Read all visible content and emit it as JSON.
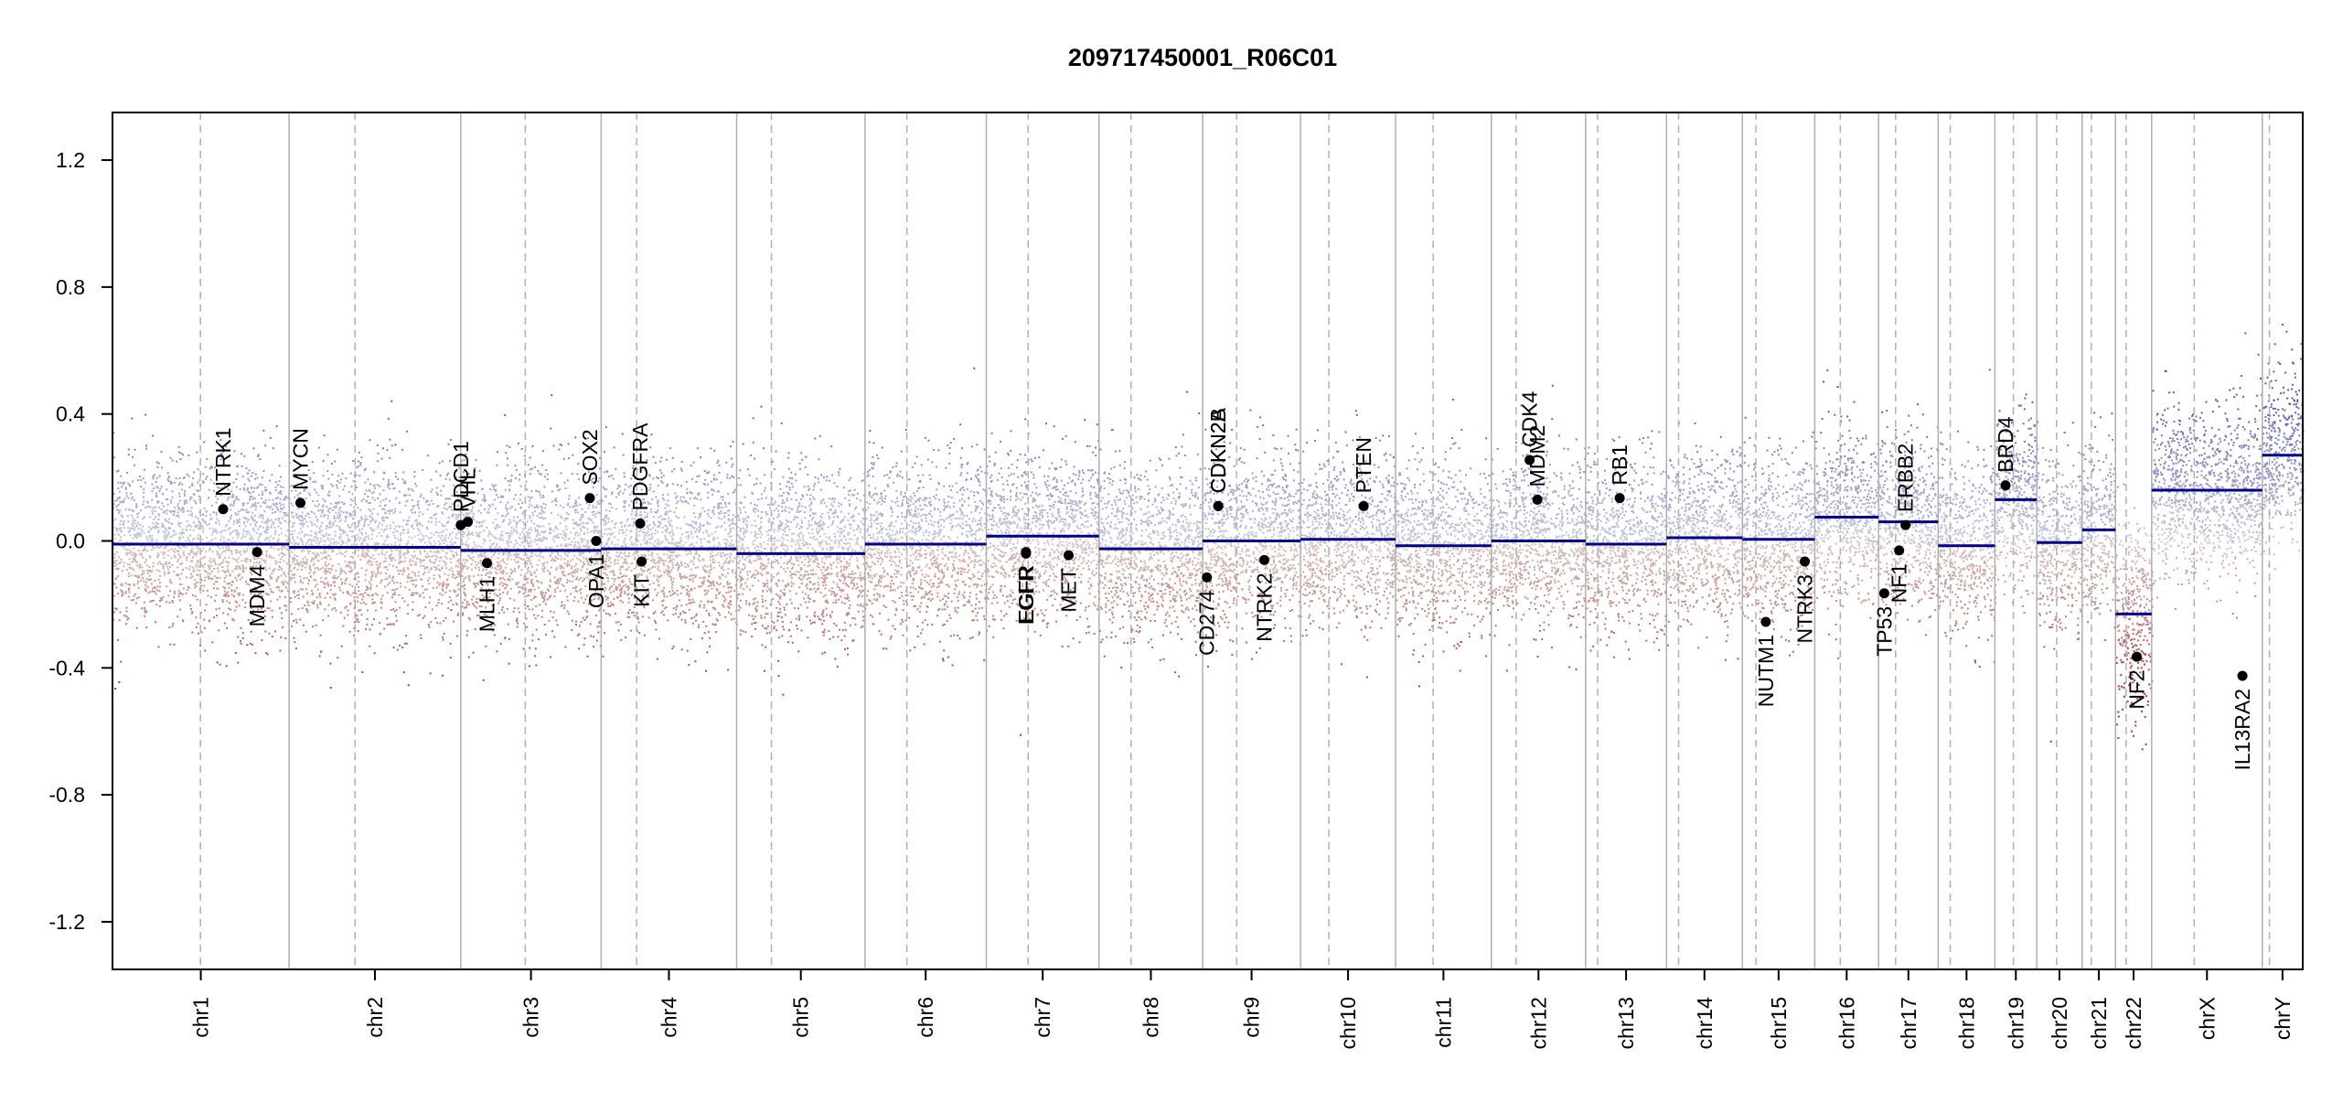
{
  "chart_data": {
    "type": "scatter",
    "title": "209717450001_R06C01",
    "xlabel": "",
    "ylabel": "",
    "ylim": [
      -1.35,
      1.35
    ],
    "y_ticks": [
      "1.2",
      "0.8",
      "0.4",
      "0.0",
      "-0.4",
      "-0.8",
      "-1.2"
    ],
    "y_tick_values": [
      1.2,
      0.8,
      0.4,
      0.0,
      -0.4,
      -0.8,
      -1.2
    ],
    "grid": false,
    "colors": {
      "gain": "#3f3fa0",
      "loss": "#a02020",
      "segment": "#00008b",
      "gene": "#000000",
      "boundary": "#b0b0b0",
      "centromere": "#b0b0b0"
    },
    "chromosomes": [
      {
        "name": "chr1",
        "start": 0,
        "end": 249,
        "centromere": 124,
        "segment": -0.01
      },
      {
        "name": "chr2",
        "start": 249,
        "end": 491,
        "centromere": 342,
        "segment": -0.02
      },
      {
        "name": "chr3",
        "start": 491,
        "end": 689,
        "centromere": 582,
        "segment": -0.03
      },
      {
        "name": "chr4",
        "start": 689,
        "end": 880,
        "centromere": 739,
        "segment": -0.025
      },
      {
        "name": "chr5",
        "start": 880,
        "end": 1061,
        "centromere": 929,
        "segment": -0.04
      },
      {
        "name": "chr6",
        "start": 1061,
        "end": 1232,
        "centromere": 1120,
        "segment": -0.01
      },
      {
        "name": "chr7",
        "start": 1232,
        "end": 1391,
        "centromere": 1291,
        "segment": 0.015
      },
      {
        "name": "chr8",
        "start": 1391,
        "end": 1537,
        "centromere": 1436,
        "segment": -0.025
      },
      {
        "name": "chr9",
        "start": 1537,
        "end": 1675,
        "centromere": 1585,
        "segment": 0.0
      },
      {
        "name": "chr10",
        "start": 1675,
        "end": 1809,
        "centromere": 1715,
        "segment": 0.005
      },
      {
        "name": "chr11",
        "start": 1809,
        "end": 1944,
        "centromere": 1862,
        "segment": -0.015
      },
      {
        "name": "chr12",
        "start": 1944,
        "end": 2077,
        "centromere": 1979,
        "segment": 0.0
      },
      {
        "name": "chr13",
        "start": 2077,
        "end": 2191,
        "centromere": 2094,
        "segment": -0.01
      },
      {
        "name": "chr14",
        "start": 2191,
        "end": 2298,
        "centromere": 2208,
        "segment": 0.01
      },
      {
        "name": "chr15",
        "start": 2298,
        "end": 2400,
        "centromere": 2317,
        "segment": 0.005
      },
      {
        "name": "chr16",
        "start": 2400,
        "end": 2490,
        "centromere": 2436,
        "segment": 0.075
      },
      {
        "name": "chr17",
        "start": 2490,
        "end": 2574,
        "centromere": 2514,
        "segment": 0.06
      },
      {
        "name": "chr18",
        "start": 2574,
        "end": 2654,
        "centromere": 2591,
        "segment": -0.015
      },
      {
        "name": "chr19",
        "start": 2654,
        "end": 2713,
        "centromere": 2680,
        "segment": 0.13
      },
      {
        "name": "chr20",
        "start": 2713,
        "end": 2777,
        "centromere": 2741,
        "segment": -0.005
      },
      {
        "name": "chr21",
        "start": 2777,
        "end": 2824,
        "centromere": 2790,
        "segment": 0.035
      },
      {
        "name": "chr22",
        "start": 2824,
        "end": 2875,
        "centromere": 2839,
        "segment": -0.23
      },
      {
        "name": "chrX",
        "start": 2875,
        "end": 3031,
        "centromere": 2935,
        "segment": 0.16
      },
      {
        "name": "chrY",
        "start": 3031,
        "end": 3088,
        "centromere": 3041,
        "segment": 0.27
      }
    ],
    "genes": [
      {
        "name": "NTRK1",
        "pos": 156,
        "value": 0.1
      },
      {
        "name": "MDM4",
        "pos": 204,
        "value": -0.035
      },
      {
        "name": "MYCN",
        "pos": 265,
        "value": 0.12
      },
      {
        "name": "PDCD1",
        "pos": 491,
        "value": 0.05
      },
      {
        "name": "VHL",
        "pos": 501,
        "value": 0.06
      },
      {
        "name": "MLH1",
        "pos": 528,
        "value": -0.07
      },
      {
        "name": "SOX2",
        "pos": 673,
        "value": 0.135
      },
      {
        "name": "OPA1",
        "pos": 682,
        "value": 0.0
      },
      {
        "name": "PDGFRA",
        "pos": 744,
        "value": 0.055
      },
      {
        "name": "KIT",
        "pos": 746,
        "value": -0.065
      },
      {
        "name": "EGFR",
        "pos": 1288,
        "value": -0.04
      },
      {
        "name": "EGFR_",
        "pos": 1288,
        "value": -0.035
      },
      {
        "name": "MET",
        "pos": 1348,
        "value": -0.045
      },
      {
        "name": "CD274",
        "pos": 1543,
        "value": -0.115
      },
      {
        "name": "CDKN2A",
        "pos": 1559,
        "value": 0.11
      },
      {
        "name": "CDKN2B",
        "pos": 1559,
        "value": 0.11
      },
      {
        "name": "NTRK2",
        "pos": 1624,
        "value": -0.06
      },
      {
        "name": "PTEN",
        "pos": 1764,
        "value": 0.11
      },
      {
        "name": "CDK4",
        "pos": 1998,
        "value": 0.255
      },
      {
        "name": "MDM2",
        "pos": 2009,
        "value": 0.13
      },
      {
        "name": "RB1",
        "pos": 2125,
        "value": 0.135
      },
      {
        "name": "NUTM1",
        "pos": 2331,
        "value": -0.255
      },
      {
        "name": "NTRK3",
        "pos": 2386,
        "value": -0.065
      },
      {
        "name": "TP53",
        "pos": 2498,
        "value": -0.165
      },
      {
        "name": "NF1",
        "pos": 2519,
        "value": -0.03
      },
      {
        "name": "ERBB2",
        "pos": 2528,
        "value": 0.05
      },
      {
        "name": "BRD4",
        "pos": 2669,
        "value": 0.175
      },
      {
        "name": "NF2",
        "pos": 2854,
        "value": -0.365
      },
      {
        "name": "IL13RA2",
        "pos": 3003,
        "value": -0.425
      }
    ]
  }
}
